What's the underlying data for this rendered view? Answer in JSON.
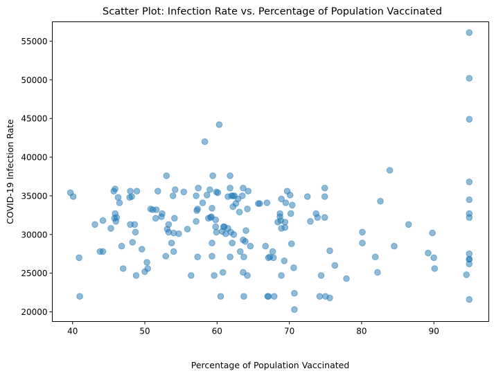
{
  "chart_data": {
    "type": "scatter",
    "title": "Scatter Plot: Infection Rate vs. Percentage of Population Vaccinated",
    "xlabel": "Percentage of Population Vaccinated",
    "ylabel": "COVID-19 Infection Rate",
    "xlim": [
      37.2,
      97.6
    ],
    "ylim": [
      18750,
      57500
    ],
    "xticks": [
      40,
      50,
      60,
      70,
      80,
      90
    ],
    "yticks": [
      20000,
      25000,
      30000,
      35000,
      40000,
      45000,
      50000,
      55000
    ],
    "grid": false,
    "point_color": "#1f77b4",
    "point_opacity": 0.5,
    "points": [
      [
        39.7,
        35400
      ],
      [
        40.1,
        34900
      ],
      [
        40.9,
        27000
      ],
      [
        41.0,
        22000
      ],
      [
        43.1,
        31300
      ],
      [
        43.8,
        27800
      ],
      [
        44.2,
        31800
      ],
      [
        44.2,
        27800
      ],
      [
        45.3,
        30800
      ],
      [
        45.7,
        35600
      ],
      [
        45.8,
        32100
      ],
      [
        45.9,
        32700
      ],
      [
        45.9,
        35900
      ],
      [
        46.1,
        32200
      ],
      [
        46.3,
        34800
      ],
      [
        46.5,
        34100
      ],
      [
        46.0,
        31700
      ],
      [
        46.8,
        28500
      ],
      [
        47.0,
        25600
      ],
      [
        47.9,
        34800
      ],
      [
        48.0,
        35600
      ],
      [
        48.2,
        34900
      ],
      [
        48.0,
        31300
      ],
      [
        48.3,
        29000
      ],
      [
        48.6,
        31300
      ],
      [
        48.9,
        35600
      ],
      [
        48.7,
        30300
      ],
      [
        48.8,
        24700
      ],
      [
        49.6,
        28100
      ],
      [
        50.0,
        25200
      ],
      [
        50.3,
        26400
      ],
      [
        50.4,
        25600
      ],
      [
        50.8,
        33300
      ],
      [
        51.1,
        33200
      ],
      [
        51.5,
        32100
      ],
      [
        51.8,
        35600
      ],
      [
        51.6,
        33200
      ],
      [
        52.3,
        32300
      ],
      [
        52.4,
        32700
      ],
      [
        52.9,
        27200
      ],
      [
        53.0,
        37600
      ],
      [
        53.1,
        30700
      ],
      [
        53.3,
        31300
      ],
      [
        53.3,
        30300
      ],
      [
        53.7,
        28900
      ],
      [
        53.9,
        35000
      ],
      [
        54.1,
        32100
      ],
      [
        54.0,
        27800
      ],
      [
        54.0,
        30200
      ],
      [
        54.2,
        35800
      ],
      [
        54.7,
        30100
      ],
      [
        55.4,
        35500
      ],
      [
        55.9,
        30700
      ],
      [
        56.4,
        24700
      ],
      [
        57.1,
        31700
      ],
      [
        57.2,
        33100
      ],
      [
        57.3,
        27100
      ],
      [
        57.1,
        35000
      ],
      [
        57.4,
        36000
      ],
      [
        57.3,
        33300
      ],
      [
        58.0,
        34100
      ],
      [
        58.3,
        42000
      ],
      [
        58.6,
        35100
      ],
      [
        58.8,
        32100
      ],
      [
        59.0,
        35800
      ],
      [
        59.1,
        32200
      ],
      [
        59.2,
        32300
      ],
      [
        59.3,
        28900
      ],
      [
        59.4,
        37600
      ],
      [
        59.3,
        33400
      ],
      [
        59.6,
        24700
      ],
      [
        59.3,
        27200
      ],
      [
        59.8,
        31900
      ],
      [
        59.8,
        31000
      ],
      [
        59.9,
        35500
      ],
      [
        59.9,
        30300
      ],
      [
        60.1,
        35400
      ],
      [
        60.3,
        44200
      ],
      [
        60.5,
        22000
      ],
      [
        60.7,
        30400
      ],
      [
        60.8,
        25100
      ],
      [
        60.9,
        31000
      ],
      [
        61.0,
        31000
      ],
      [
        61.2,
        30100
      ],
      [
        61.5,
        30800
      ],
      [
        61.5,
        34900
      ],
      [
        61.8,
        36000
      ],
      [
        61.8,
        37600
      ],
      [
        61.8,
        27100
      ],
      [
        61.9,
        30300
      ],
      [
        62.0,
        35000
      ],
      [
        62.2,
        35000
      ],
      [
        62.1,
        28900
      ],
      [
        62.2,
        33600
      ],
      [
        62.3,
        30000
      ],
      [
        62.4,
        35000
      ],
      [
        62.6,
        34000
      ],
      [
        62.9,
        34600
      ],
      [
        63.1,
        32900
      ],
      [
        63.2,
        27800
      ],
      [
        63.6,
        36000
      ],
      [
        63.6,
        25100
      ],
      [
        63.5,
        35000
      ],
      [
        63.6,
        29300
      ],
      [
        63.7,
        27100
      ],
      [
        63.7,
        22000
      ],
      [
        63.9,
        29100
      ],
      [
        64.0,
        30500
      ],
      [
        64.2,
        24700
      ],
      [
        64.2,
        33300
      ],
      [
        64.3,
        35600
      ],
      [
        64.6,
        28500
      ],
      [
        65.7,
        34000
      ],
      [
        65.9,
        34000
      ],
      [
        66.7,
        28500
      ],
      [
        66.9,
        34100
      ],
      [
        67.0,
        22000
      ],
      [
        67.1,
        27000
      ],
      [
        67.1,
        22000
      ],
      [
        67.3,
        27100
      ],
      [
        67.7,
        27800
      ],
      [
        67.8,
        27000
      ],
      [
        67.9,
        22000
      ],
      [
        68.4,
        31600
      ],
      [
        68.7,
        32300
      ],
      [
        68.7,
        32700
      ],
      [
        68.8,
        31800
      ],
      [
        68.9,
        30800
      ],
      [
        68.9,
        24700
      ],
      [
        68.9,
        34600
      ],
      [
        69.4,
        31600
      ],
      [
        69.3,
        26600
      ],
      [
        69.4,
        30900
      ],
      [
        69.5,
        34100
      ],
      [
        69.7,
        35600
      ],
      [
        70.1,
        35100
      ],
      [
        70.2,
        32700
      ],
      [
        70.3,
        28800
      ],
      [
        70.4,
        33800
      ],
      [
        70.6,
        25700
      ],
      [
        70.7,
        22400
      ],
      [
        70.7,
        20300
      ],
      [
        72.5,
        34900
      ],
      [
        72.9,
        31700
      ],
      [
        73.7,
        32700
      ],
      [
        73.9,
        32200
      ],
      [
        74.2,
        22000
      ],
      [
        74.4,
        24700
      ],
      [
        74.9,
        32200
      ],
      [
        74.9,
        34900
      ],
      [
        74.9,
        36000
      ],
      [
        75.0,
        22000
      ],
      [
        75.6,
        27900
      ],
      [
        75.6,
        21800
      ],
      [
        76.3,
        26000
      ],
      [
        77.9,
        24300
      ],
      [
        80.1,
        30300
      ],
      [
        80.1,
        28900
      ],
      [
        81.9,
        27100
      ],
      [
        82.2,
        25100
      ],
      [
        82.6,
        34300
      ],
      [
        83.9,
        38300
      ],
      [
        84.5,
        28500
      ],
      [
        86.5,
        31300
      ],
      [
        89.2,
        27600
      ],
      [
        89.8,
        30200
      ],
      [
        90.0,
        27000
      ],
      [
        90.1,
        25600
      ],
      [
        94.5,
        24800
      ],
      [
        94.9,
        56100
      ],
      [
        94.9,
        50200
      ],
      [
        94.9,
        44900
      ],
      [
        94.9,
        36800
      ],
      [
        94.9,
        34500
      ],
      [
        94.9,
        32700
      ],
      [
        94.9,
        32200
      ],
      [
        94.9,
        27500
      ],
      [
        94.9,
        26800
      ],
      [
        94.9,
        26200
      ],
      [
        94.9,
        21600
      ],
      [
        94.9,
        26800
      ]
    ]
  }
}
